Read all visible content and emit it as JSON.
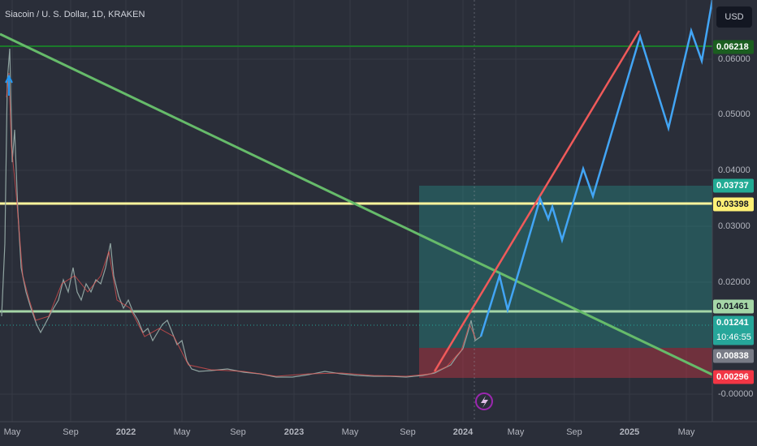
{
  "header": {
    "title": "Siacoin / U. S. Dollar, 1D, KRAKEN",
    "currency": "USD"
  },
  "price_axis": [
    "0.06000",
    "0.05000",
    "0.04000",
    "0.03000",
    "0.02000",
    "-0.00000"
  ],
  "time_axis": [
    "May",
    "Sep",
    "2022",
    "May",
    "Sep",
    "2023",
    "May",
    "Sep",
    "2024",
    "May",
    "Sep",
    "2025",
    "May"
  ],
  "price_tags": [
    {
      "label": "0.06218",
      "color": "#1b5e20",
      "text_color": "#ffffff"
    },
    {
      "label": "0.03737",
      "color": "#22ab94",
      "text_color": "#ffffff"
    },
    {
      "label": "0.03398",
      "color": "#fff176",
      "text_color": "#131722"
    },
    {
      "label": "0.01461",
      "color": "#a5d6a7",
      "text_color": "#131722"
    },
    {
      "label": "0.01241",
      "color": "#26a69a",
      "text_color": "#ffffff"
    },
    {
      "label": "0.00838",
      "color": "#787b86",
      "text_color": "#ffffff"
    },
    {
      "label": "0.00296",
      "color": "#f23645",
      "text_color": "#ffffff"
    }
  ],
  "countdown": "10:46:55"
}
